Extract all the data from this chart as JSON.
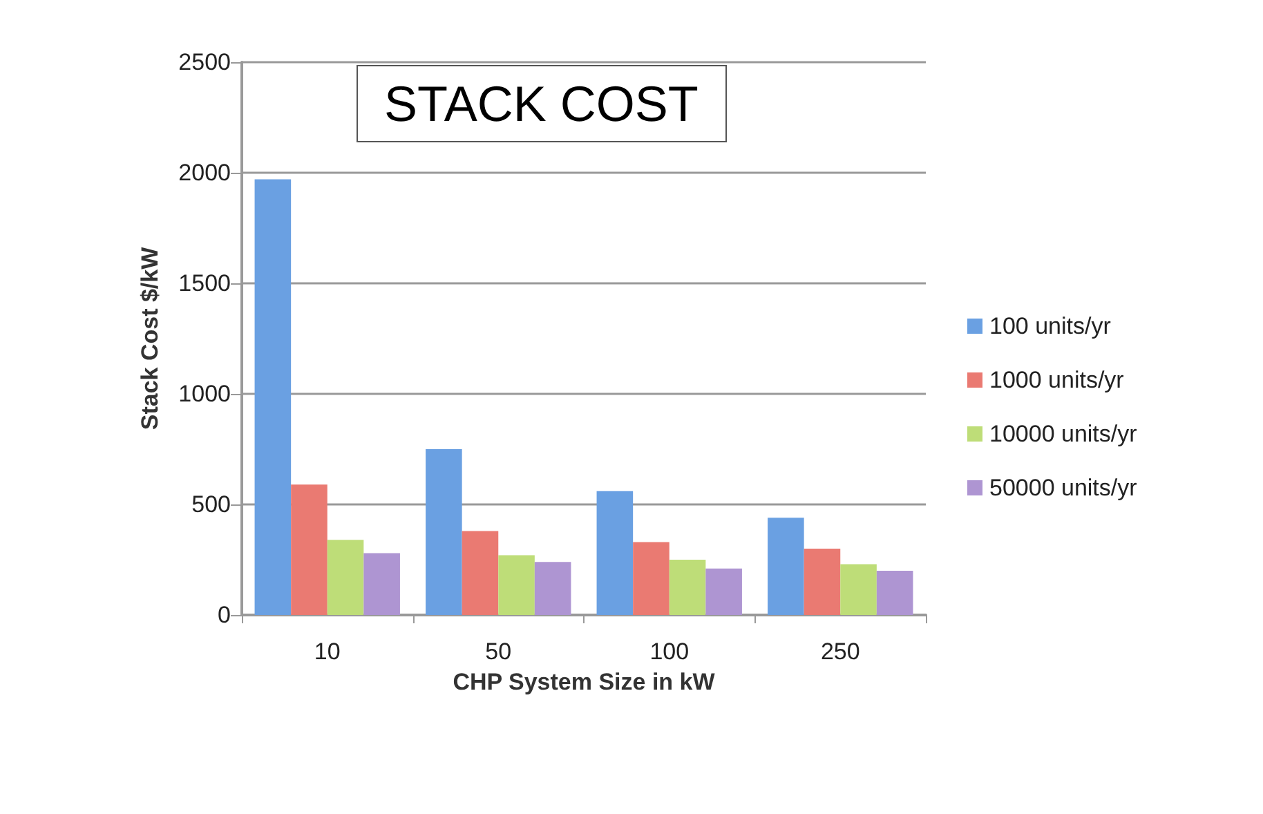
{
  "chart_data": {
    "type": "bar",
    "title": "STACK COST",
    "xlabel": "CHP System Size in kW",
    "ylabel": "Stack Cost $/kW",
    "categories": [
      "10",
      "50",
      "100",
      "250"
    ],
    "series": [
      {
        "name": "100 units/yr",
        "color": "#6aa0e2",
        "values": [
          1970,
          750,
          560,
          440
        ]
      },
      {
        "name": "1000 units/yr",
        "color": "#ea7a72",
        "values": [
          590,
          380,
          330,
          300
        ]
      },
      {
        "name": "10000 units/yr",
        "color": "#bedd78",
        "values": [
          340,
          270,
          250,
          230
        ]
      },
      {
        "name": "50000 units/yr",
        "color": "#ae95d2",
        "values": [
          280,
          240,
          210,
          200
        ]
      }
    ],
    "ylim": [
      0,
      2500
    ],
    "yticks": [
      0,
      500,
      1000,
      1500,
      2000,
      2500
    ],
    "grid": "y",
    "legend": "right"
  }
}
